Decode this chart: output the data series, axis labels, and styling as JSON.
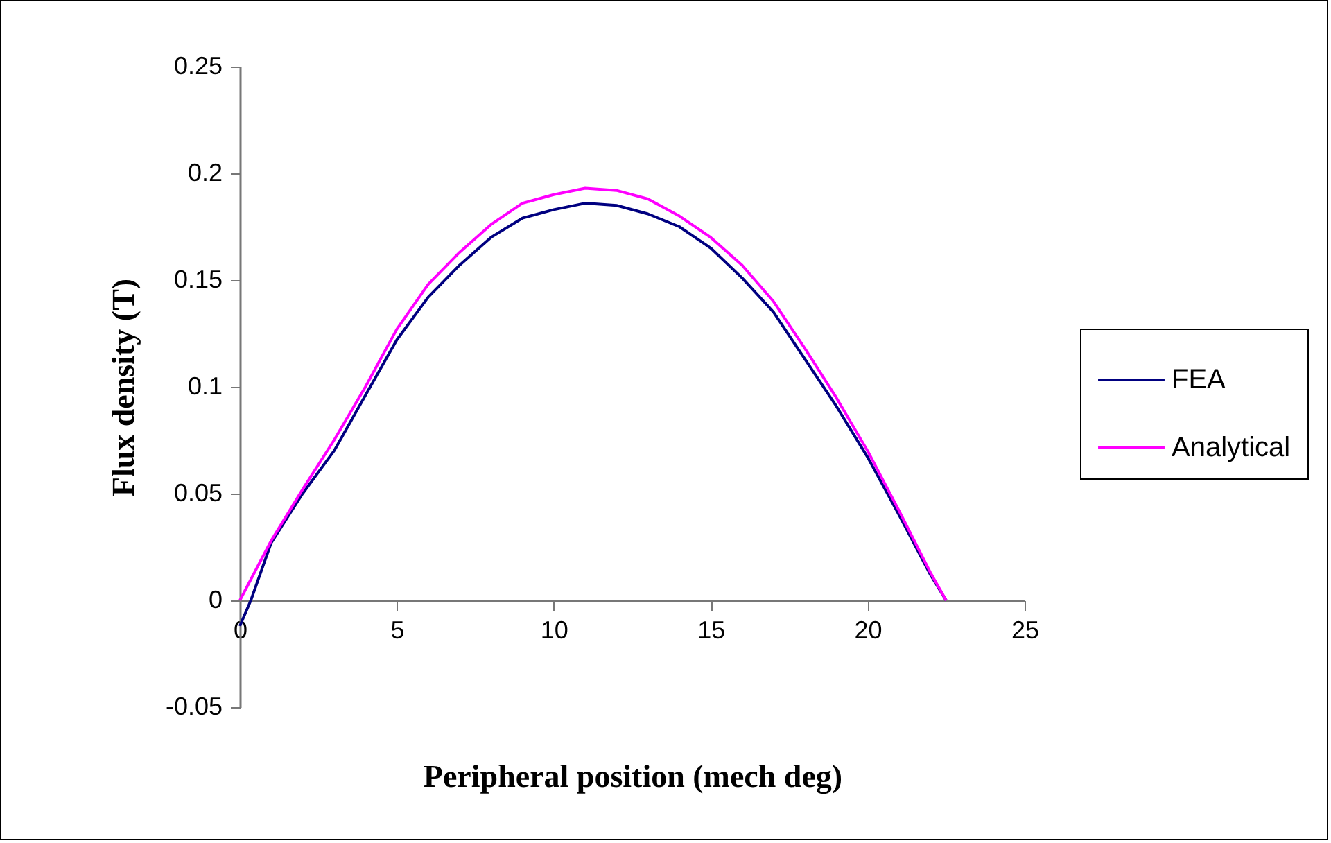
{
  "chart_data": {
    "type": "line",
    "xlabel": "Peripheral position (mech deg)",
    "ylabel": "Flux density (T)",
    "xlim": [
      0,
      25
    ],
    "xticks": [
      0,
      5,
      10,
      15,
      20,
      25
    ],
    "ylim": [
      -0.05,
      0.25
    ],
    "yticks": [
      -0.05,
      0,
      0.05,
      0.1,
      0.15,
      0.2,
      0.25
    ],
    "grid": false,
    "legend": "right",
    "marker": "none",
    "line_style": "solid",
    "series": [
      {
        "name": "FEA",
        "color": "#000080",
        "x": [
          0,
          0.35,
          1,
          2,
          3,
          4,
          5,
          6,
          7,
          8,
          9,
          10,
          11,
          12,
          13,
          14,
          15,
          16,
          17,
          18,
          19,
          20,
          21,
          22,
          22.5
        ],
        "values": [
          -0.012,
          0,
          0.027,
          0.05,
          0.07,
          0.096,
          0.122,
          0.142,
          0.157,
          0.17,
          0.179,
          0.183,
          0.186,
          0.185,
          0.181,
          0.175,
          0.165,
          0.151,
          0.135,
          0.113,
          0.091,
          0.067,
          0.04,
          0.012,
          0
        ]
      },
      {
        "name": "Analytical",
        "color": "#ff00ff",
        "x": [
          0,
          1,
          2,
          3,
          4,
          5,
          6,
          7,
          8,
          9,
          10,
          11,
          12,
          13,
          14,
          15,
          16,
          17,
          18,
          19,
          20,
          21,
          22,
          22.5
        ],
        "values": [
          0,
          0.028,
          0.052,
          0.075,
          0.1,
          0.127,
          0.148,
          0.163,
          0.176,
          0.186,
          0.19,
          0.193,
          0.192,
          0.188,
          0.18,
          0.17,
          0.157,
          0.14,
          0.118,
          0.095,
          0.07,
          0.042,
          0.013,
          0
        ]
      }
    ]
  }
}
